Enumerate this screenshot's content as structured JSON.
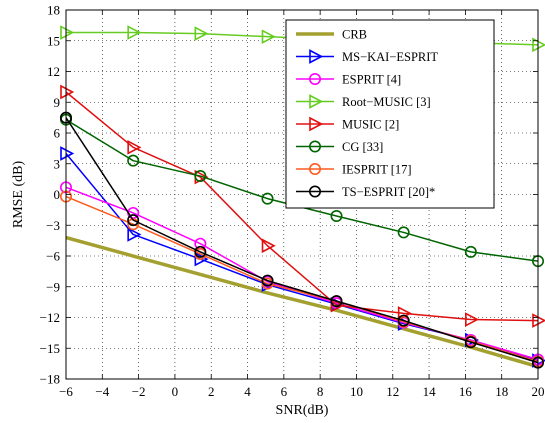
{
  "chart_data": {
    "type": "line",
    "xlabel": "SNR(dB)",
    "ylabel": "RMSE (dB)",
    "xlim": [
      -6,
      20
    ],
    "ylim": [
      -18,
      18
    ],
    "xticks": [
      -6,
      -4,
      -2,
      0,
      2,
      4,
      6,
      8,
      10,
      12,
      14,
      16,
      18,
      20
    ],
    "yticks": [
      -18,
      -15,
      -12,
      -9,
      -6,
      -3,
      0,
      3,
      6,
      9,
      12,
      15,
      18
    ],
    "xtick_labels": [
      "−6",
      "−4",
      "−2",
      "0",
      "2",
      "4",
      "6",
      "8",
      "10",
      "12",
      "14",
      "16",
      "18",
      "20"
    ],
    "ytick_labels": [
      "−18",
      "−15",
      "−12",
      "−9",
      "−6",
      "−3",
      "0",
      "3",
      "6",
      "9",
      "12",
      "15",
      "18"
    ],
    "grid": true,
    "legend_position": "top-right",
    "x": [
      -6,
      -2.3,
      1.4,
      5.1,
      8.9,
      12.6,
      16.3,
      20
    ],
    "series": [
      {
        "name": "CRB",
        "color": "#a3a030",
        "marker": "none",
        "width": 3.5,
        "values": [
          -4.2,
          -6.0,
          -7.8,
          -9.6,
          -11.3,
          -13.1,
          -14.9,
          -16.8
        ]
      },
      {
        "name": "MS−KAI−ESPRIT",
        "color": "#0000ff",
        "marker": "tri-right",
        "values": [
          4.0,
          -3.9,
          -6.3,
          -8.8,
          -10.7,
          -12.6,
          -14.2,
          -16.2
        ]
      },
      {
        "name": "ESPRIT [4]",
        "color": "#ff00ff",
        "marker": "circle",
        "values": [
          0.7,
          -1.8,
          -4.8,
          -8.5,
          -10.6,
          -12.5,
          -14.2,
          -16.1
        ]
      },
      {
        "name": "Root−MUSIC [3]",
        "color": "#66cc22",
        "marker": "tri-right",
        "values": [
          15.8,
          15.8,
          15.7,
          15.4,
          15.1,
          14.9,
          14.8,
          14.6
        ]
      },
      {
        "name": "MUSIC [2]",
        "color": "#e01010",
        "marker": "tri-right",
        "values": [
          10.0,
          4.6,
          1.7,
          -5.0,
          -10.8,
          -11.6,
          -12.2,
          -12.3
        ]
      },
      {
        "name": "CG [33]",
        "color": "#006400",
        "marker": "circle",
        "values": [
          7.3,
          3.3,
          1.8,
          -0.4,
          -2.1,
          -3.7,
          -5.6,
          -6.5
        ]
      },
      {
        "name": "IESPRIT [17]",
        "color": "#ff5a1f",
        "marker": "circle",
        "values": [
          -0.2,
          -2.9,
          -5.8,
          -8.7,
          -10.4,
          -12.4,
          -14.3,
          -16.3
        ]
      },
      {
        "name": "TS−ESPRIT [20]*",
        "color": "#000000",
        "marker": "circle",
        "values": [
          7.5,
          -2.5,
          -5.6,
          -8.4,
          -10.4,
          -12.3,
          -14.4,
          -16.4
        ]
      }
    ]
  }
}
